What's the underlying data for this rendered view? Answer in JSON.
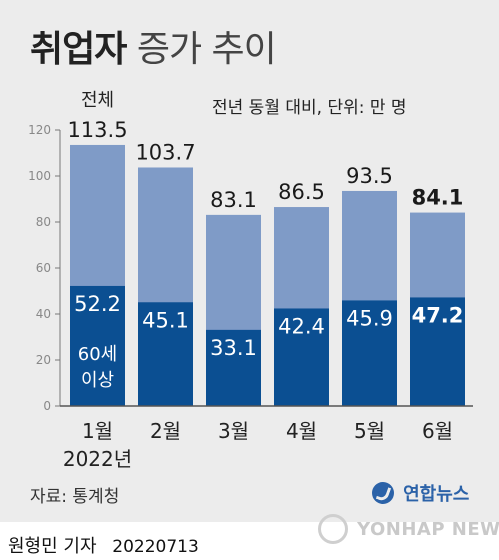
{
  "title_bold": "취업자",
  "title_rest": "증가 추이",
  "unit_note": "전년 동월 대비, 단위: 만 명",
  "source": "자료: 통계청",
  "logo_text": "연합뉴스",
  "byline_name": "원형민 기자",
  "byline_date": "20220713",
  "watermark_text": "YONHAP NEWS",
  "chart_data": {
    "type": "bar",
    "stacking": "overlay",
    "categories": [
      "1월",
      "2월",
      "3월",
      "4월",
      "5월",
      "6월"
    ],
    "year_label": "2022년",
    "series": [
      {
        "name": "전체",
        "values": [
          113.5,
          103.7,
          83.1,
          86.5,
          93.5,
          84.1
        ],
        "color": "#7f9bc7"
      },
      {
        "name": "60세 이상",
        "values": [
          52.2,
          45.1,
          33.1,
          42.4,
          45.9,
          47.2
        ],
        "color": "#0b4f92"
      }
    ],
    "ylim": [
      0,
      120
    ],
    "yticks": [
      0,
      20,
      40,
      60,
      80,
      100,
      120
    ],
    "grid": false,
    "highlight_last": true,
    "series_label_total": "전체",
    "series_label_senior_line1": "60세",
    "series_label_senior_line2": "이상"
  }
}
